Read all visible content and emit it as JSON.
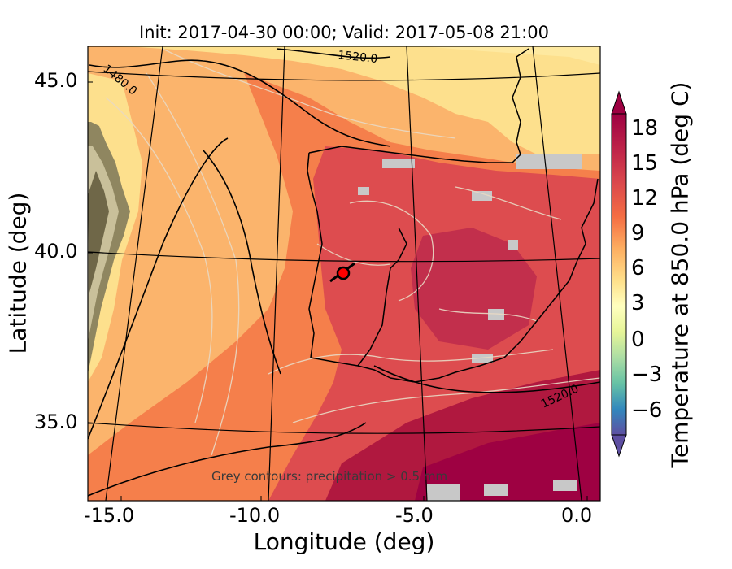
{
  "title": "Init: 2017-04-30 00:00; Valid: 2017-05-08 21:00",
  "xlabel": "Longitude (deg)",
  "ylabel": "Latitude (deg)",
  "colorbar": {
    "label": "Temperature at 850.0 hPa (deg C)",
    "ticks": [
      "18",
      "15",
      "12",
      "9",
      "6",
      "3",
      "0",
      "−3",
      "−6"
    ],
    "range": [
      -8,
      21
    ],
    "colormap": "Spectral_r"
  },
  "x_ticks": [
    "-15.0",
    "-10.0",
    "-5.0",
    "0.0"
  ],
  "y_ticks": [
    "45.0",
    "40.0",
    "35.0"
  ],
  "x_range": [
    -16,
    0.1
  ],
  "y_range": [
    32.5,
    46
  ],
  "annotation": "Grey contours: precipitation > 0.5 mm",
  "contour_labels": [
    "1520.0",
    "1480.0",
    "1520.0"
  ],
  "marker": {
    "lon": -7.7,
    "lat": 39.3,
    "color": "#ff0000"
  },
  "colors": {
    "warmest": "#9e0142",
    "hot": "#d53e4f",
    "warm": "#f46d43",
    "mild": "#fdae61",
    "cool": "#fee08b",
    "neutral": "#ffffbf",
    "cold": "#5e4fa2"
  }
}
